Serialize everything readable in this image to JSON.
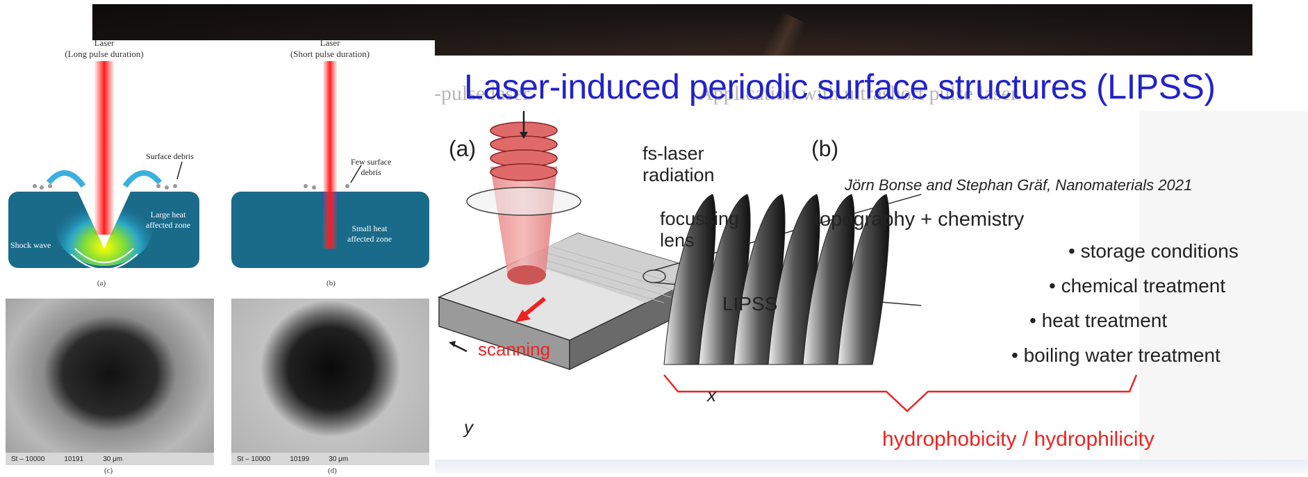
{
  "slide": {
    "title": "Laser-induced periodic surface structures (LIPSS)",
    "ghost_left": "g-pulse laser",
    "ghost_right": "Application with ultrashort pulse laser",
    "citation": "Jörn Bonse and Stephan Gräf, Nanomaterials 2021"
  },
  "left_figure": {
    "panel_a": {
      "title": "Laser\n(Long pulse duration)",
      "surface_debris": "Surface debris",
      "large_heat": "Large heat\naffected zone",
      "shock_wave": "Shock wave",
      "caption": "(a)"
    },
    "panel_b": {
      "title": "Laser\n(Short pulse duration)",
      "few_debris": "Few surface\ndebris",
      "small_heat": "Small heat\naffected zone",
      "caption": "(b)"
    },
    "sem_c": {
      "code": "St – 10000",
      "num": "10191",
      "scale": "30 μm",
      "caption": "(c)"
    },
    "sem_d": {
      "code": "St – 10000",
      "num": "10199",
      "scale": "30 μm",
      "caption": "(d)"
    }
  },
  "right_figure": {
    "label_a": "(a)",
    "label_b": "(b)",
    "fs_laser": "fs-laser\nradiation",
    "focussing": "focussing\nlens",
    "lipss": "LIPSS",
    "scanning": "scanning",
    "axis_x": "x",
    "axis_y": "y",
    "topography": "topography + chemistry",
    "treatments": [
      "• storage conditions",
      "• chemical treatment",
      "• heat treatment",
      "• boiling water treatment"
    ],
    "result": "hydrophobicity / hydrophilicity"
  },
  "colors": {
    "title": "#2222cc",
    "result": "#ee2222",
    "scanning": "#ee2222",
    "substrate": "#1a6a8a"
  }
}
